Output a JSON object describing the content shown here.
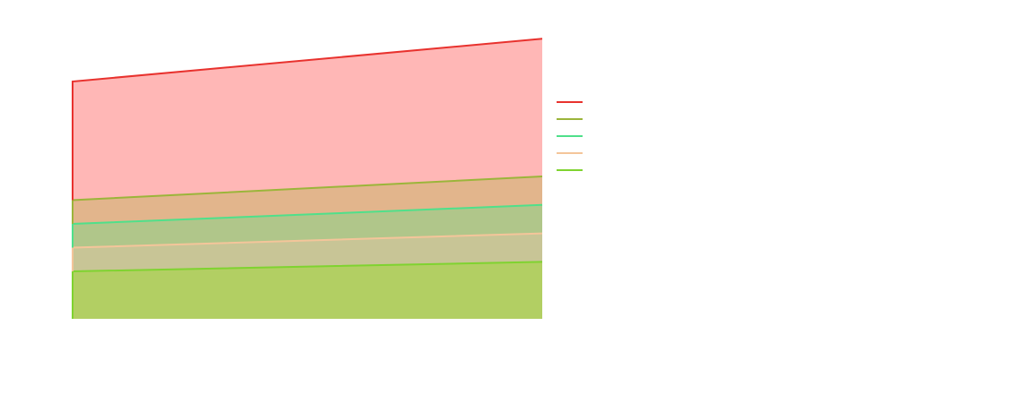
{
  "chart_data": {
    "type": "area",
    "stacked": true,
    "title": "",
    "xlabel": "",
    "ylabel": "",
    "x": [
      0,
      1
    ],
    "ylim": [
      0,
      12.0
    ],
    "grid": false,
    "axes_visible": false,
    "legend": {
      "placement": "right",
      "show_labels": false
    },
    "series": [
      {
        "values": [
          2.0,
          2.4
        ],
        "color": "#7fd330",
        "fill": "#b2cf63"
      },
      {
        "values": [
          1.0,
          1.2
        ],
        "color": "#f4c59a",
        "fill": "#c8c596"
      },
      {
        "values": [
          1.0,
          1.2
        ],
        "color": "#4fe08a",
        "fill": "#b0c68a"
      },
      {
        "values": [
          1.0,
          1.2
        ],
        "color": "#9bb53a",
        "fill": "#e2b58c"
      },
      {
        "values": [
          5.0,
          5.8
        ],
        "color": "#e8322e",
        "fill": "#ffb7b6"
      }
    ],
    "legend_order": [
      4,
      3,
      2,
      1,
      0
    ]
  }
}
